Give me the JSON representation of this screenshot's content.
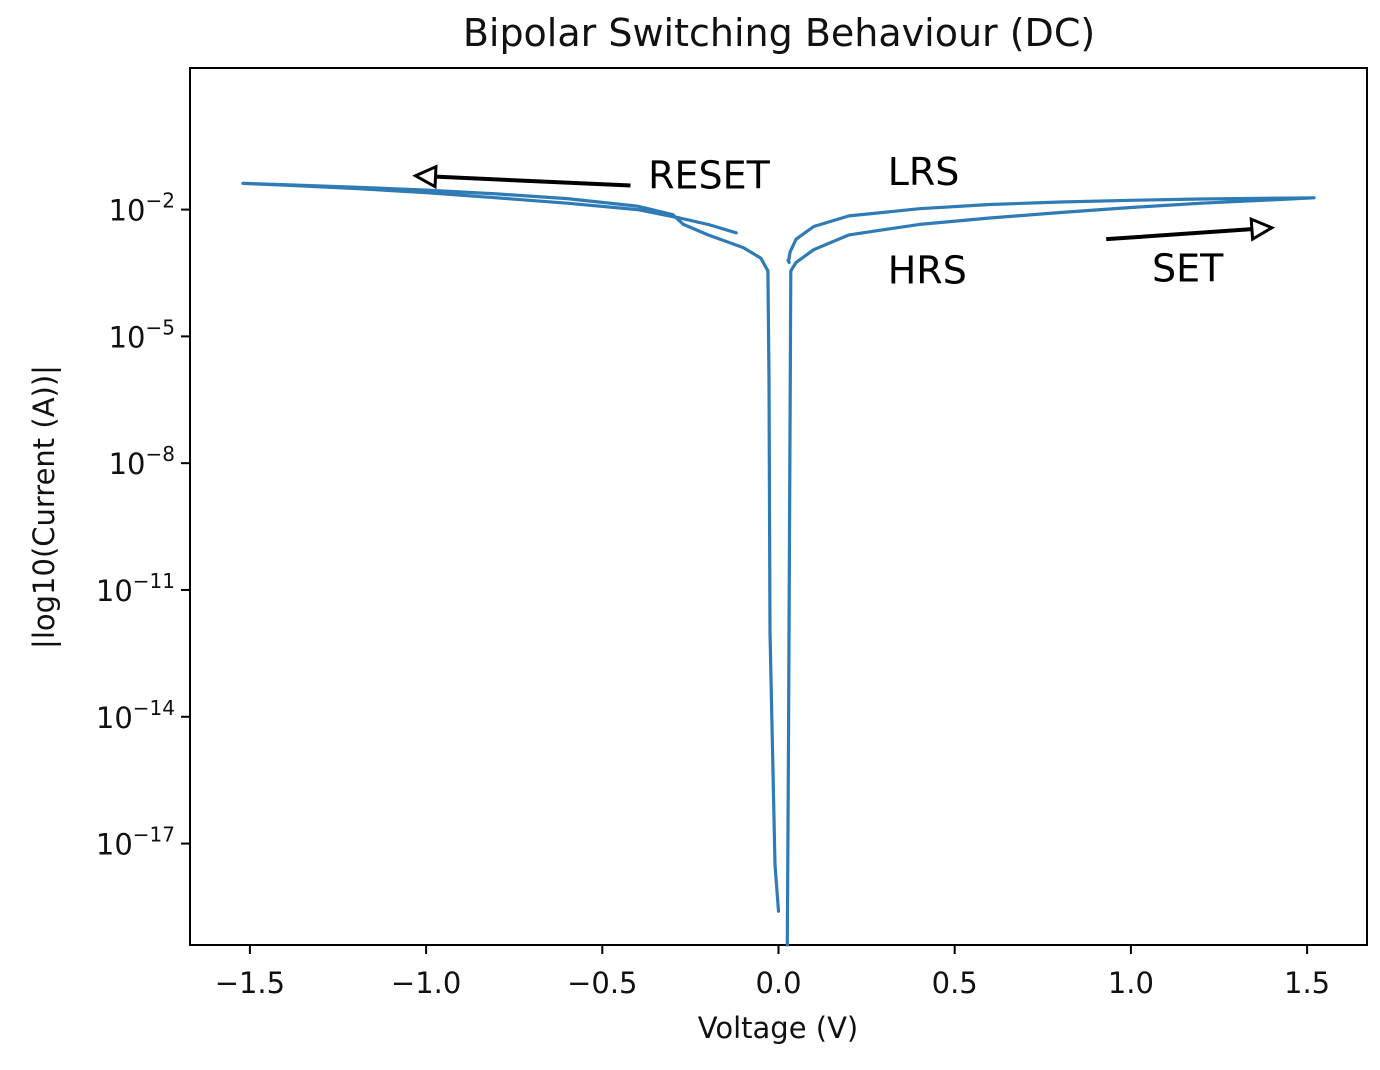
{
  "chart_data": {
    "type": "line",
    "title": "Bipolar Switching Behaviour (DC)",
    "xlabel": "Voltage (V)",
    "ylabel": "|log10(Current (A))|",
    "xlim": [
      -1.67,
      1.67
    ],
    "ylog": true,
    "ylim_exponent": [
      -19.4,
      1.35
    ],
    "x_ticks": [
      -1.5,
      -1.0,
      -0.5,
      0.0,
      0.5,
      1.0,
      1.5
    ],
    "x_tick_labels": [
      "−1.5",
      "−1.0",
      "−0.5",
      "0.0",
      "0.5",
      "1.0",
      "1.5"
    ],
    "y_tick_exponents": [
      -2,
      -5,
      -8,
      -11,
      -14,
      -17
    ],
    "y_tick_base": "10",
    "y_tick_sup": [
      "−2",
      "−5",
      "−8",
      "−11",
      "−14",
      "−17"
    ],
    "grid": false,
    "line_color": "#2f7bb6",
    "series": [
      {
        "x": [
          -0.12,
          -0.2,
          -0.28,
          -0.4,
          -0.6,
          -0.8,
          -1.0,
          -1.2,
          -1.4,
          -1.52,
          -1.4,
          -1.2,
          -1.0,
          -0.8,
          -0.6,
          -0.4,
          -0.3,
          -0.27,
          -0.2,
          -0.1,
          -0.05,
          -0.03,
          -0.027,
          -0.024,
          -0.01,
          0.0
        ],
        "y_exponent": [
          -2.55,
          -2.35,
          -2.2,
          -2.0,
          -1.85,
          -1.72,
          -1.6,
          -1.5,
          -1.42,
          -1.38,
          -1.41,
          -1.47,
          -1.54,
          -1.63,
          -1.74,
          -1.92,
          -2.12,
          -2.35,
          -2.6,
          -2.9,
          -3.15,
          -3.45,
          -6.0,
          -12.0,
          -17.5,
          -18.6
        ]
      },
      {
        "x": [
          0.025,
          0.028,
          0.035,
          0.05,
          0.1,
          0.2,
          0.4,
          0.6,
          0.8,
          1.0,
          1.2,
          1.4,
          1.52,
          1.4,
          1.2,
          1.0,
          0.8,
          0.6,
          0.4,
          0.2,
          0.1,
          0.05,
          0.033,
          0.029,
          0.027,
          0.03
        ],
        "y_exponent": [
          -19.4,
          -15.0,
          -3.45,
          -3.25,
          -2.95,
          -2.6,
          -2.35,
          -2.2,
          -2.07,
          -1.95,
          -1.85,
          -1.77,
          -1.72,
          -1.73,
          -1.75,
          -1.78,
          -1.82,
          -1.88,
          -1.98,
          -2.15,
          -2.4,
          -2.7,
          -3.0,
          -3.2,
          -3.2,
          -3.25
        ]
      }
    ],
    "annotations": [
      {
        "text": "RESET",
        "x": -0.37,
        "y_exponent": -1.5
      },
      {
        "text": "LRS",
        "x": 0.31,
        "y_exponent": -1.42
      },
      {
        "text": "HRS",
        "x": 0.31,
        "y_exponent": -3.75
      },
      {
        "text": "SET",
        "x": 1.06,
        "y_exponent": -3.7
      }
    ],
    "arrows": [
      {
        "name": "reset-arrow",
        "from_x": -0.42,
        "from_y_exponent": -1.43,
        "to_x": -1.03,
        "to_y_exponent": -1.2
      },
      {
        "name": "set-arrow",
        "from_x": 0.93,
        "from_y_exponent": -2.7,
        "to_x": 1.4,
        "to_y_exponent": -2.43
      }
    ]
  }
}
